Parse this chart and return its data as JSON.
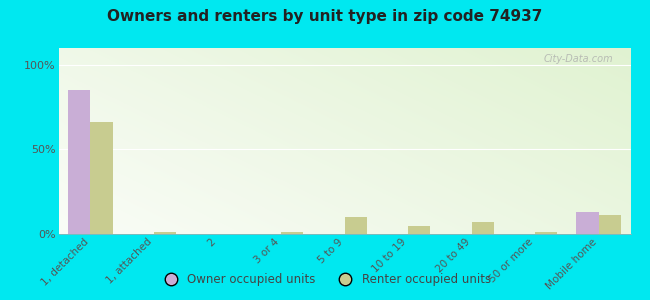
{
  "title": "Owners and renters by unit type in zip code 74937",
  "categories": [
    "1, detached",
    "1, attached",
    "2",
    "3 or 4",
    "5 to 9",
    "10 to 19",
    "20 to 49",
    "50 or more",
    "Mobile home"
  ],
  "owner_values": [
    85,
    0,
    0,
    0,
    0,
    0,
    0,
    0,
    13
  ],
  "renter_values": [
    66,
    1,
    0,
    1,
    10,
    5,
    7,
    1,
    11
  ],
  "owner_color": "#c9aed6",
  "renter_color": "#c8cc90",
  "bg_outer": "#00e8f0",
  "yticks": [
    0,
    50,
    100
  ],
  "ylim": [
    0,
    110
  ],
  "watermark": "City-Data.com",
  "legend_owner": "Owner occupied units",
  "legend_renter": "Renter occupied units",
  "grad_colors": [
    "#e8f5d8",
    "#f8fef2"
  ],
  "grid_color": "#d8e8c8"
}
